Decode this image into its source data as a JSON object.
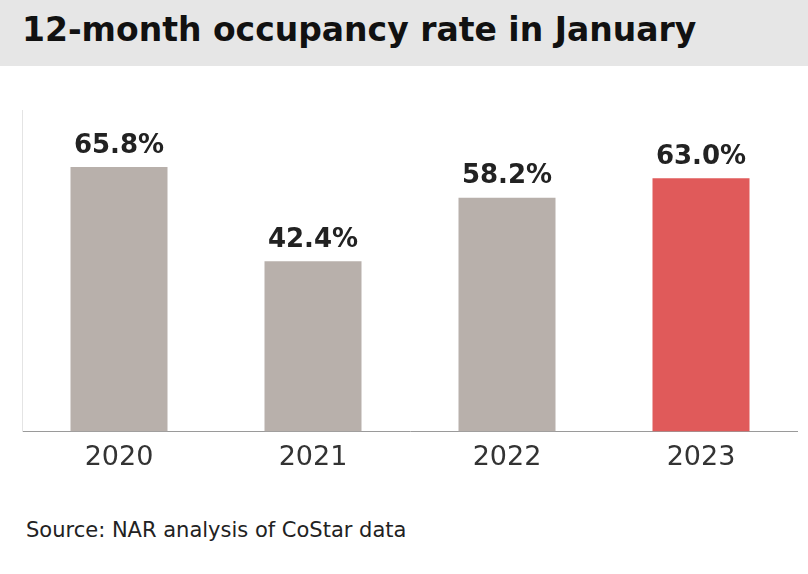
{
  "chart_data": {
    "type": "bar",
    "title": "12-month occupancy rate in January",
    "categories": [
      "2020",
      "2021",
      "2022",
      "2023"
    ],
    "values": [
      65.8,
      42.4,
      58.2,
      63.0
    ],
    "value_labels": [
      "65.8%",
      "42.4%",
      "58.2%",
      "63.0%"
    ],
    "colors": [
      "#b8b0ab",
      "#b8b0ab",
      "#b8b0ab",
      "#e05a5a"
    ],
    "ylim": [
      0,
      80
    ],
    "grid": false,
    "data_labels": true,
    "tick_labels": "x",
    "source": "Source: NAR analysis of CoStar data"
  }
}
